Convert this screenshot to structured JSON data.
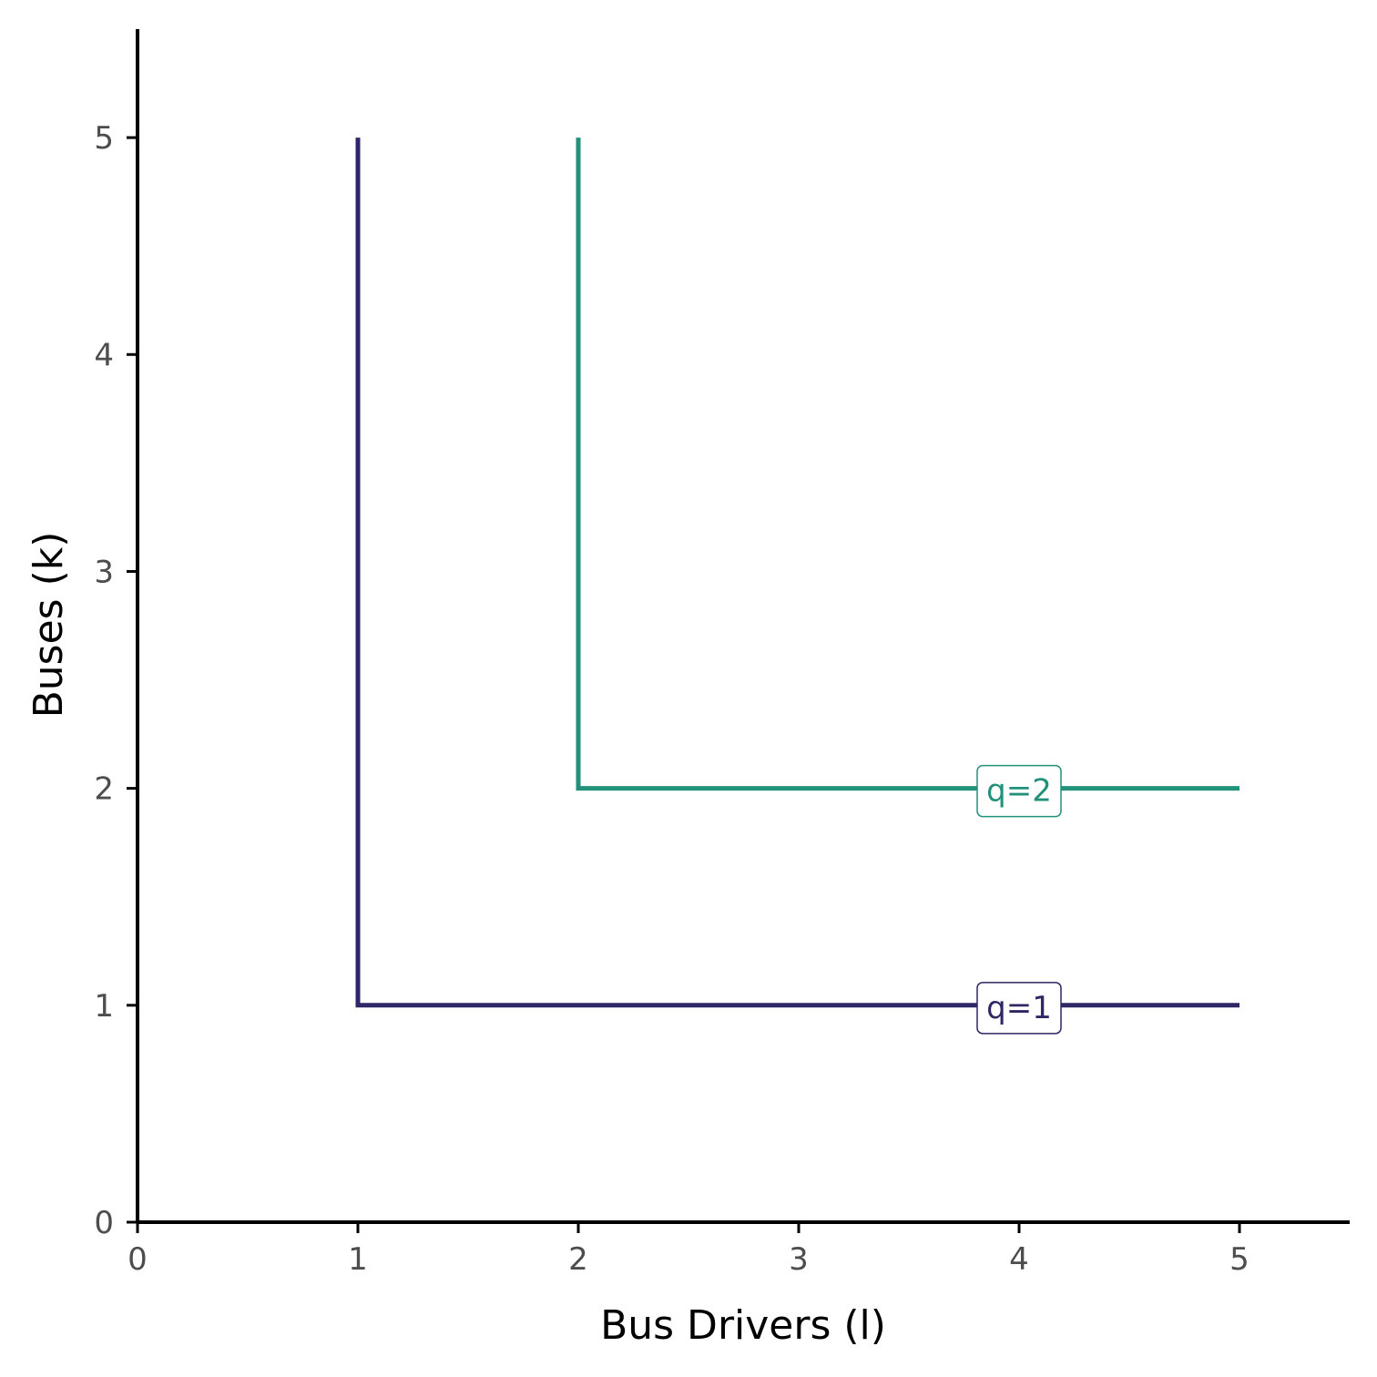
{
  "chart_data": {
    "type": "line",
    "title": "",
    "xlabel": "Bus Drivers (l)",
    "ylabel": "Buses (k)",
    "xlim": [
      0,
      5.5
    ],
    "ylim": [
      0,
      5.5
    ],
    "xticks": [
      0,
      1,
      2,
      3,
      4,
      5
    ],
    "yticks": [
      0,
      1,
      2,
      3,
      4,
      5
    ],
    "grid": false,
    "legend": "none",
    "series": [
      {
        "name": "q=1",
        "color": "#2d2766",
        "points": [
          [
            1,
            5
          ],
          [
            1,
            1
          ],
          [
            5,
            1
          ]
        ],
        "label_at": [
          4,
          1
        ]
      },
      {
        "name": "q=2",
        "color": "#21917a",
        "points": [
          [
            2,
            5
          ],
          [
            2,
            2
          ],
          [
            5,
            2
          ]
        ],
        "label_at": [
          4,
          2
        ]
      }
    ]
  }
}
